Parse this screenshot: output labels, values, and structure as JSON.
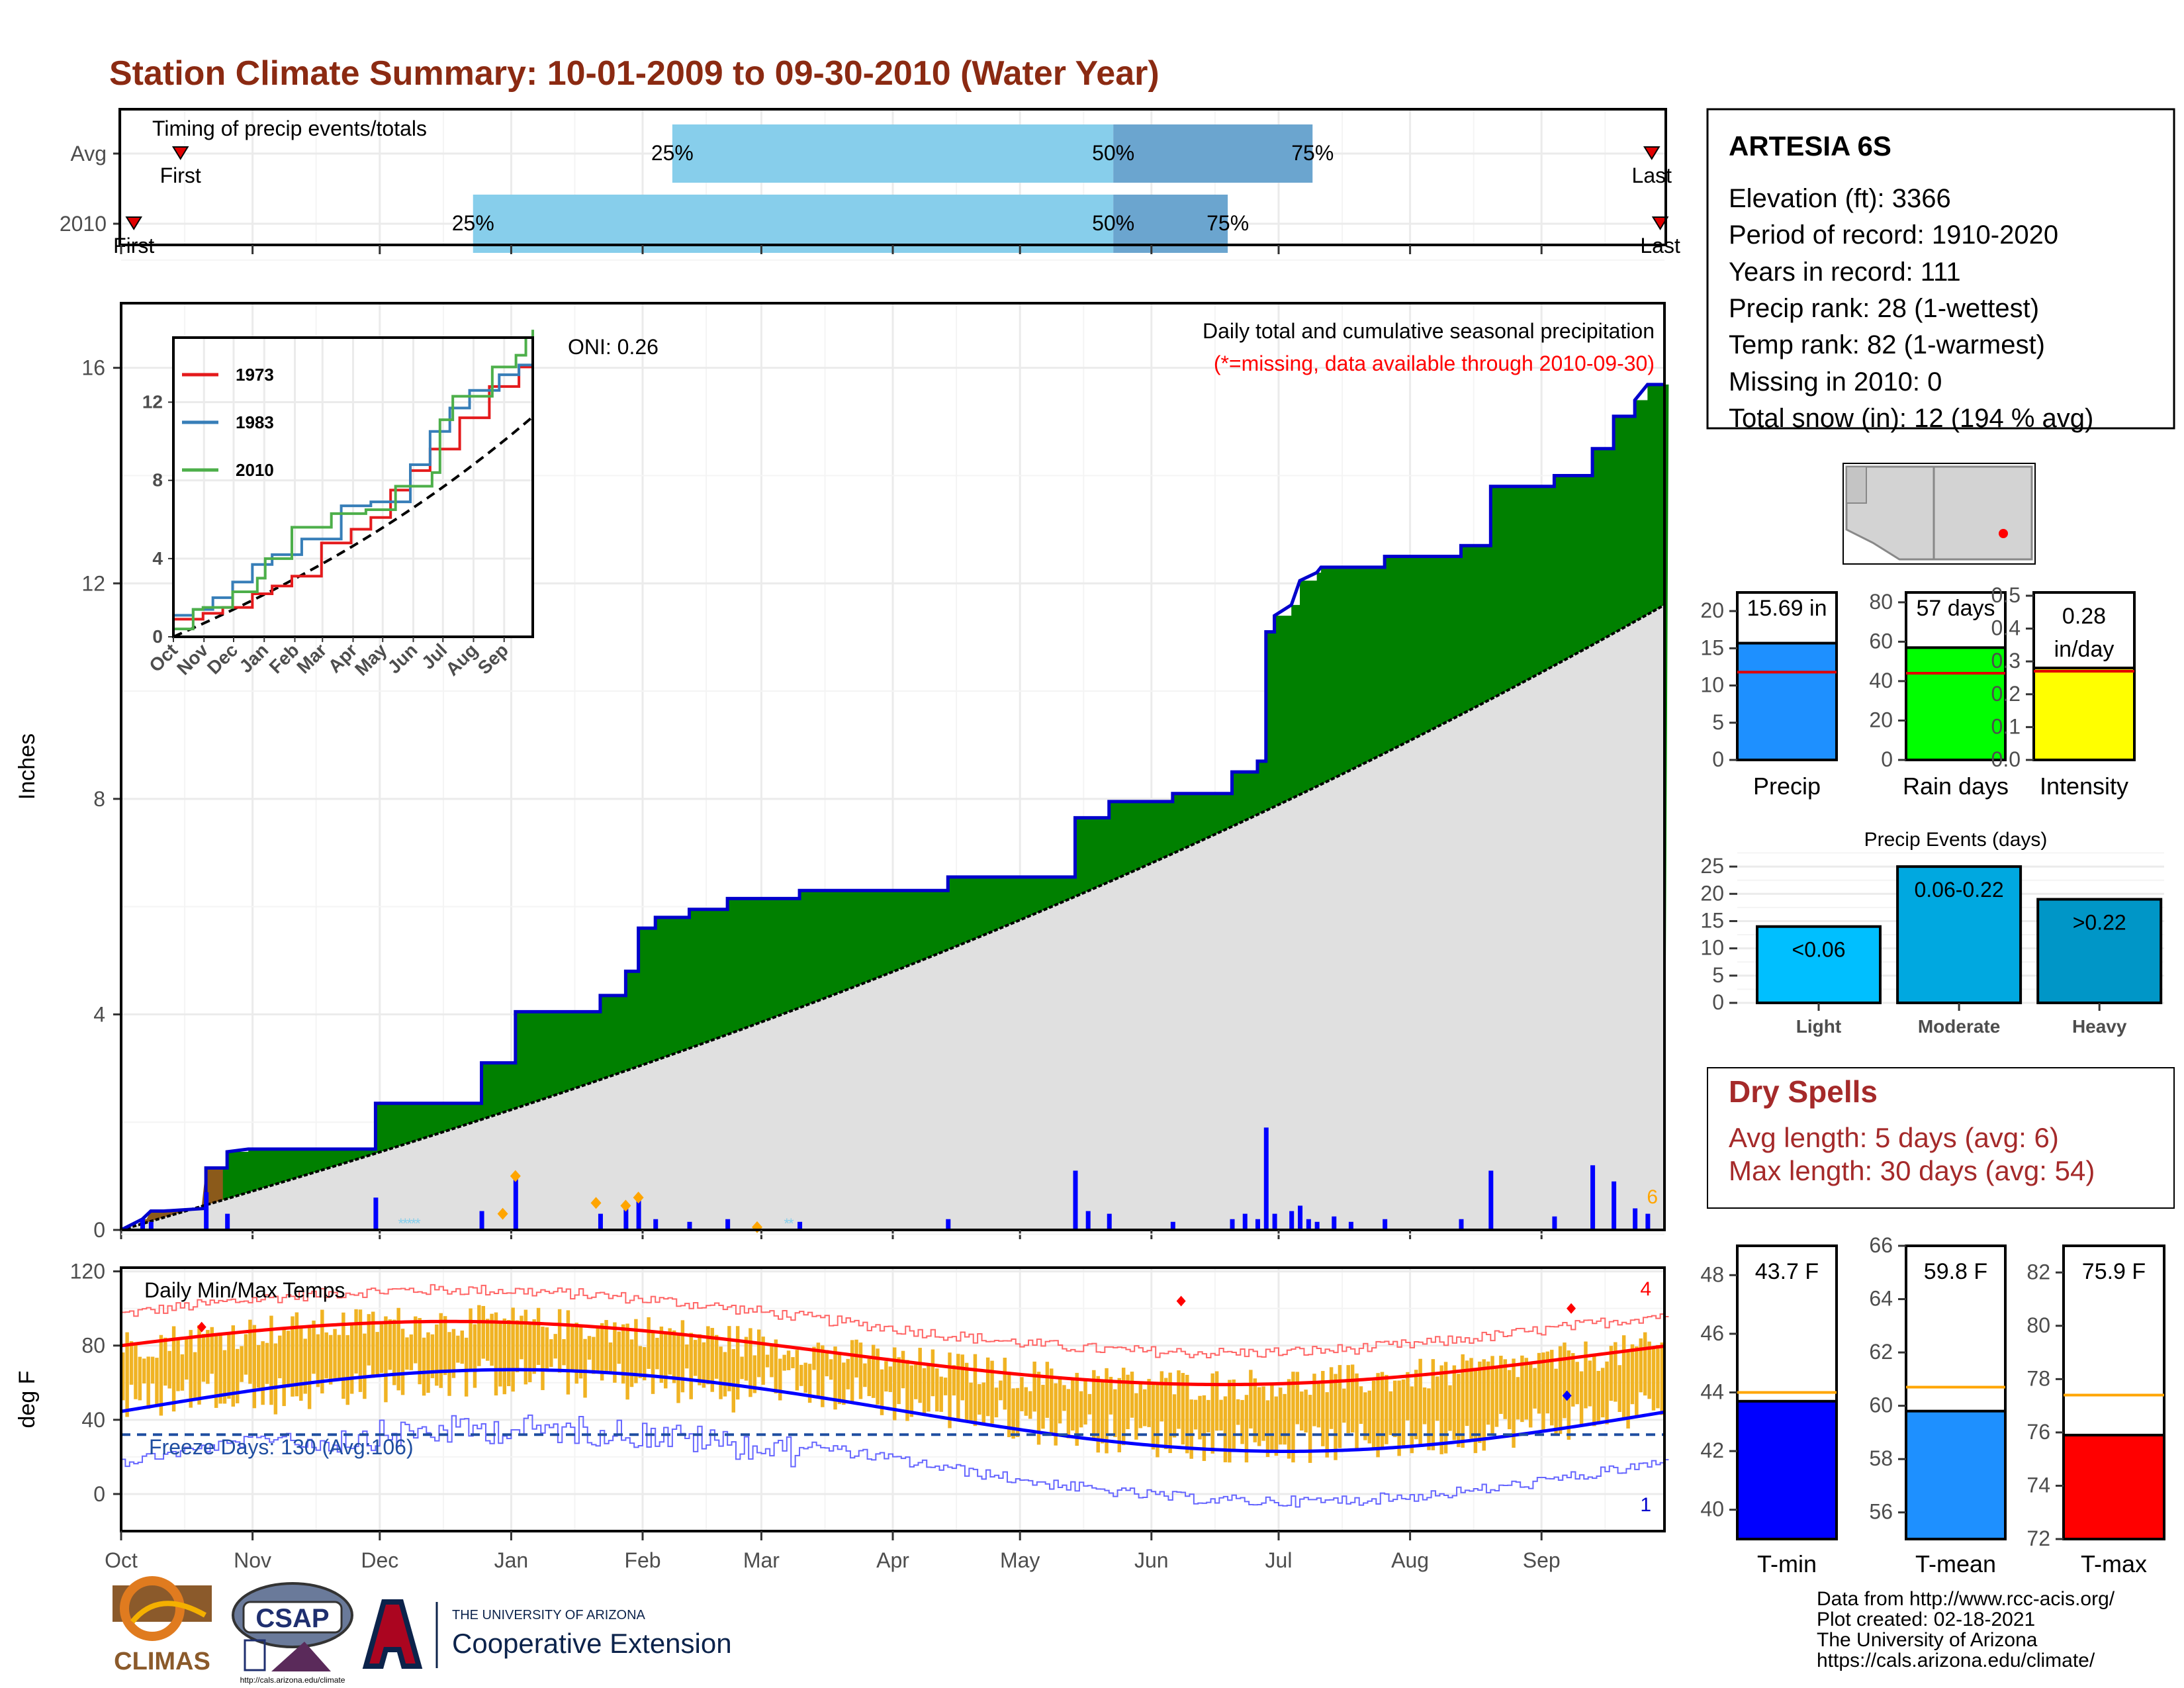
{
  "title": "Station Climate Summary: 10-01-2009 to 09-30-2010 (Water Year)",
  "timing": {
    "label": "Timing of precip events/totals",
    "rows": [
      {
        "name": "Avg",
        "first_label": "First",
        "last_label": "Last",
        "first_day": 14,
        "last_day": 361,
        "q25": 130,
        "q50": 234,
        "q75": 281,
        "q25_label": "25%",
        "q50_label": "50%",
        "q75_label": "75%"
      },
      {
        "name": "2010",
        "first_label": "First",
        "last_label": "Last",
        "first_day": 3,
        "last_day": 363,
        "q25": 83,
        "q50": 234,
        "q75": 261,
        "q25_label": "25%",
        "q50_label": "50%",
        "q75_label": "75%"
      }
    ]
  },
  "months": [
    "Oct",
    "Nov",
    "Dec",
    "Jan",
    "Feb",
    "Mar",
    "Apr",
    "May",
    "Jun",
    "Jul",
    "Aug",
    "Sep"
  ],
  "month_days": [
    0,
    31,
    61,
    92,
    123,
    151,
    182,
    212,
    243,
    273,
    304,
    335
  ],
  "precip_chart": {
    "ylabel": "Inches",
    "yticks": [
      0,
      4,
      8,
      12,
      16
    ],
    "ylim": [
      0,
      17.2
    ],
    "oni_label": "ONI: 0.26",
    "subtitle": "Daily total and cumulative seasonal precipitation",
    "missing_note": "(*=missing, data available through 2010-09-30)",
    "corner_count": "6",
    "cumulative_2010": [
      [
        0,
        0
      ],
      [
        5,
        0.2
      ],
      [
        7,
        0.35
      ],
      [
        10,
        0.35
      ],
      [
        20,
        0.4
      ],
      [
        20,
        1.15
      ],
      [
        25,
        1.15
      ],
      [
        25,
        1.45
      ],
      [
        30,
        1.5
      ],
      [
        60,
        1.5
      ],
      [
        60,
        2.35
      ],
      [
        67,
        2.35
      ],
      [
        85,
        2.35
      ],
      [
        85,
        3.1
      ],
      [
        93,
        3.1
      ],
      [
        93,
        4.05
      ],
      [
        113,
        4.05
      ],
      [
        113,
        4.35
      ],
      [
        119,
        4.35
      ],
      [
        119,
        4.8
      ],
      [
        122,
        4.8
      ],
      [
        122,
        5.6
      ],
      [
        126,
        5.6
      ],
      [
        126,
        5.8
      ],
      [
        134,
        5.8
      ],
      [
        134,
        5.95
      ],
      [
        143,
        5.95
      ],
      [
        143,
        6.15
      ],
      [
        160,
        6.15
      ],
      [
        160,
        6.3
      ],
      [
        195,
        6.3
      ],
      [
        195,
        6.55
      ],
      [
        225,
        6.55
      ],
      [
        225,
        7.65
      ],
      [
        233,
        7.65
      ],
      [
        233,
        7.95
      ],
      [
        248,
        7.95
      ],
      [
        248,
        8.1
      ],
      [
        262,
        8.1
      ],
      [
        262,
        8.5
      ],
      [
        268,
        8.5
      ],
      [
        268,
        8.7
      ],
      [
        270,
        8.7
      ],
      [
        270,
        11.1
      ],
      [
        272,
        11.1
      ],
      [
        272,
        11.4
      ],
      [
        276,
        11.6
      ],
      [
        278,
        12.05
      ],
      [
        282,
        12.2
      ],
      [
        283,
        12.3
      ],
      [
        298,
        12.3
      ],
      [
        298,
        12.5
      ],
      [
        316,
        12.5
      ],
      [
        316,
        12.7
      ],
      [
        323,
        12.7
      ],
      [
        323,
        13.8
      ],
      [
        338,
        13.8
      ],
      [
        338,
        14.0
      ],
      [
        347,
        14.0
      ],
      [
        347,
        14.5
      ],
      [
        352,
        14.5
      ],
      [
        352,
        15.1
      ],
      [
        357,
        15.1
      ],
      [
        357,
        15.4
      ],
      [
        360,
        15.69
      ],
      [
        364,
        15.69
      ]
    ],
    "cumulative_avg_end": 11.6,
    "daily_bars": [
      [
        5,
        0.2
      ],
      [
        7,
        0.15
      ],
      [
        20,
        0.7
      ],
      [
        25,
        0.3
      ],
      [
        60,
        0.6
      ],
      [
        85,
        0.35
      ],
      [
        93,
        0.95
      ],
      [
        113,
        0.3
      ],
      [
        119,
        0.45
      ],
      [
        122,
        0.6
      ],
      [
        126,
        0.2
      ],
      [
        134,
        0.15
      ],
      [
        143,
        0.2
      ],
      [
        160,
        0.15
      ],
      [
        195,
        0.2
      ],
      [
        225,
        1.1
      ],
      [
        228,
        0.35
      ],
      [
        233,
        0.3
      ],
      [
        248,
        0.15
      ],
      [
        262,
        0.2
      ],
      [
        265,
        0.3
      ],
      [
        268,
        0.2
      ],
      [
        270,
        1.9
      ],
      [
        272,
        0.3
      ],
      [
        276,
        0.35
      ],
      [
        278,
        0.45
      ],
      [
        280,
        0.2
      ],
      [
        282,
        0.15
      ],
      [
        286,
        0.25
      ],
      [
        290,
        0.15
      ],
      [
        298,
        0.2
      ],
      [
        316,
        0.2
      ],
      [
        323,
        1.1
      ],
      [
        338,
        0.25
      ],
      [
        347,
        1.2
      ],
      [
        352,
        0.9
      ],
      [
        357,
        0.4
      ],
      [
        360,
        0.3
      ]
    ],
    "missing_markers": [
      [
        90,
        0.3
      ],
      [
        93,
        1.0
      ],
      [
        112,
        0.5
      ],
      [
        119,
        0.45
      ],
      [
        122,
        0.6
      ],
      [
        150,
        0.05
      ]
    ]
  },
  "inset": {
    "yticks": [
      0,
      4,
      8,
      12
    ],
    "months": [
      "Oct",
      "Nov",
      "Dec",
      "Jan",
      "Feb",
      "Mar",
      "Apr",
      "May",
      "Jun",
      "Jul",
      "Aug",
      "Sep"
    ],
    "series": [
      {
        "name": "1973",
        "color": "#e41a1c"
      },
      {
        "name": "1983",
        "color": "#377eb8"
      },
      {
        "name": "2010",
        "color": "#4daf4a"
      }
    ]
  },
  "temp_chart": {
    "ylabel": "deg F",
    "yticks": [
      0,
      40,
      80,
      120
    ],
    "ylim": [
      -20,
      122
    ],
    "label": "Daily Min/Max Temps",
    "freeze_label": "Freeze Days: 130 (Avg:106)",
    "freeze_line": 32,
    "max_record_count": "4",
    "min_record_count": "1"
  },
  "info_box": {
    "station": "ARTESIA 6S",
    "lines": [
      "Elevation (ft): 3366",
      "Period of record: 1910-2020",
      "Years in record: 111",
      "Precip rank: 28 (1-wettest)",
      "Temp rank: 82 (1-warmest)",
      "Missing in 2010: 0",
      "Total snow (in): 12 (194 % avg)"
    ]
  },
  "summary_bars": [
    {
      "name": "Precip",
      "value": 15.69,
      "avg": 11.8,
      "label": "15.69 in",
      "ymax": 22.5,
      "ticks": [
        "0",
        "5",
        "10",
        "15",
        "20"
      ],
      "tickvals": [
        0,
        5,
        10,
        15,
        20
      ],
      "color": "#1e90ff"
    },
    {
      "name": "Rain days",
      "value": 57,
      "avg": 44,
      "label": "57 days",
      "ymax": 85,
      "ticks": [
        "0",
        "20",
        "40",
        "60",
        "80"
      ],
      "tickvals": [
        0,
        20,
        40,
        60,
        80
      ],
      "color": "#00ff00"
    },
    {
      "name": "Intensity",
      "value": 0.28,
      "avg": 0.27,
      "label": "0.28 in/day",
      "ymax": 0.51,
      "ticks": [
        "0.0",
        "0.1",
        "0.2",
        "0.3",
        "0.4",
        "0.5"
      ],
      "tickvals": [
        0,
        0.1,
        0.2,
        0.3,
        0.4,
        0.5
      ],
      "color": "#ffff00"
    }
  ],
  "events": {
    "title": "Precip Events (days)",
    "yticks": [
      0,
      5,
      10,
      15,
      20,
      25
    ],
    "categories": [
      "Light",
      "Moderate",
      "Heavy"
    ],
    "values": [
      14,
      25,
      19
    ],
    "bar_labels": [
      "<0.06",
      "0.06-0.22",
      ">0.22"
    ],
    "colors": [
      "#00bfff",
      "#00a8e0",
      "#0096c7"
    ]
  },
  "dry_spells": {
    "title": "Dry Spells",
    "avg_length": "Avg length: 5 days (avg: 6)",
    "max_length": "Max length: 30 days (avg: 54)"
  },
  "temp_bars": [
    {
      "name": "T-min",
      "value": 43.7,
      "avg": 44.0,
      "label": "43.7 F",
      "ymin": 39,
      "ymax": 49,
      "tickvals": [
        40,
        42,
        44,
        46,
        48
      ],
      "color": "#0000ff"
    },
    {
      "name": "T-mean",
      "value": 59.8,
      "avg": 60.7,
      "label": "59.8 F",
      "ymin": 55,
      "ymax": 66,
      "tickvals": [
        56,
        58,
        60,
        62,
        64,
        66
      ],
      "color": "#1e90ff"
    },
    {
      "name": "T-max",
      "value": 75.9,
      "avg": 77.4,
      "label": "75.9 F",
      "ymin": 72,
      "ymax": 83,
      "tickvals": [
        72,
        74,
        76,
        78,
        80,
        82
      ],
      "color": "#ff0000"
    }
  ],
  "footer": {
    "credits": [
      "Data from http://www.rcc-acis.org/",
      "Plot created: 02-18-2021",
      "The University of Arizona",
      "https://cals.arizona.edu/climate/"
    ],
    "climas": "CLIMAS",
    "csap": "CSAP",
    "csap_url": "http://cals.arizona.edu/climate",
    "ua_line1": "THE UNIVERSITY OF ARIZONA",
    "ua_line2": "Cooperative Extension"
  }
}
